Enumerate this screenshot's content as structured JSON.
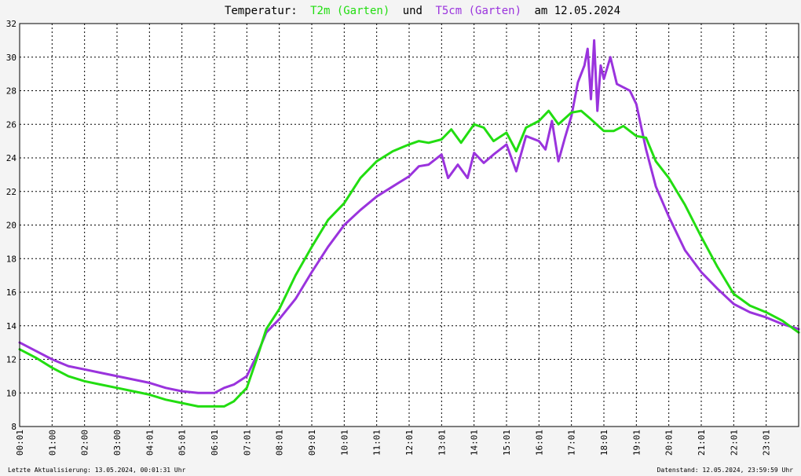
{
  "title": {
    "prefix": "Temperatur:",
    "series1": "T2m (Garten)",
    "joiner": "und",
    "series2": "T5cm (Garten)",
    "suffix": "am 12.05.2024"
  },
  "footer": {
    "left": "Letzte Aktualisierung: 13.05.2024, 00:01:31 Uhr",
    "right": "Datenstand: 12.05.2024, 23:59:59 Uhr"
  },
  "colors": {
    "T2m": "#22dd11",
    "T5cm": "#9a33dd",
    "background": "#ffffff",
    "page": "#f4f4f4",
    "grid": "#000000"
  },
  "chart_data": {
    "type": "line",
    "title": "Temperatur: T2m (Garten) und T5cm (Garten) am 12.05.2024",
    "xlabel": "",
    "ylabel": "",
    "ylim": [
      8,
      32
    ],
    "yticks": [
      8,
      10,
      12,
      14,
      16,
      18,
      20,
      22,
      24,
      26,
      28,
      30,
      32
    ],
    "xlim_hours": [
      0,
      24
    ],
    "xtick_labels": [
      "00:01",
      "01:00",
      "02:00",
      "03:00",
      "04:01",
      "05:01",
      "06:01",
      "07:01",
      "08:01",
      "09:01",
      "10:01",
      "11:01",
      "12:01",
      "13:01",
      "14:01",
      "15:01",
      "16:01",
      "17:01",
      "18:01",
      "19:01",
      "20:01",
      "21:01",
      "22:01",
      "23:01"
    ],
    "xtick_hours": [
      0,
      1,
      2,
      3,
      4,
      5,
      6,
      7,
      8,
      9,
      10,
      11,
      12,
      13,
      14,
      15,
      16,
      17,
      18,
      19,
      20,
      21,
      22,
      23
    ],
    "grid": true,
    "series": [
      {
        "name": "T2m (Garten)",
        "x_hours": [
          0,
          0.5,
          1,
          1.5,
          2,
          2.5,
          3,
          3.5,
          4,
          4.5,
          5,
          5.5,
          6,
          6.3,
          6.6,
          7,
          7.3,
          7.6,
          8,
          8.5,
          9,
          9.5,
          10,
          10.5,
          11,
          11.5,
          12,
          12.3,
          12.6,
          13,
          13.3,
          13.6,
          14,
          14.3,
          14.6,
          15,
          15.3,
          15.6,
          16,
          16.3,
          16.6,
          17,
          17.3,
          17.6,
          18,
          18.3,
          18.6,
          19,
          19.3,
          19.6,
          20,
          20.5,
          21,
          21.5,
          22,
          22.5,
          23,
          23.5,
          24
        ],
        "values": [
          12.6,
          12.1,
          11.5,
          11.0,
          10.7,
          10.5,
          10.3,
          10.1,
          9.9,
          9.6,
          9.4,
          9.2,
          9.2,
          9.2,
          9.5,
          10.3,
          12.0,
          13.8,
          15.0,
          17.0,
          18.7,
          20.3,
          21.3,
          22.8,
          23.8,
          24.4,
          24.8,
          25.0,
          24.9,
          25.1,
          25.7,
          24.9,
          26.0,
          25.8,
          25.0,
          25.5,
          24.4,
          25.8,
          26.2,
          26.8,
          26.0,
          26.7,
          26.8,
          26.3,
          25.6,
          25.6,
          25.9,
          25.3,
          25.2,
          23.8,
          22.8,
          21.2,
          19.3,
          17.5,
          15.9,
          15.2,
          14.8,
          14.3,
          13.6
        ]
      },
      {
        "name": "T5cm (Garten)",
        "x_hours": [
          0,
          0.5,
          1,
          1.5,
          2,
          2.5,
          3,
          3.5,
          4,
          4.5,
          5,
          5.5,
          6,
          6.3,
          6.6,
          7,
          7.3,
          7.6,
          8,
          8.5,
          9,
          9.5,
          10,
          10.5,
          11,
          11.5,
          12,
          12.3,
          12.6,
          13,
          13.2,
          13.5,
          13.8,
          14,
          14.3,
          14.6,
          15,
          15.3,
          15.6,
          16,
          16.2,
          16.4,
          16.6,
          16.8,
          17,
          17.2,
          17.4,
          17.5,
          17.6,
          17.7,
          17.8,
          17.9,
          18,
          18.2,
          18.4,
          18.6,
          18.8,
          19,
          19.3,
          19.6,
          20,
          20.5,
          21,
          21.5,
          22,
          22.5,
          23,
          23.5,
          24
        ],
        "values": [
          13.0,
          12.5,
          12.0,
          11.6,
          11.4,
          11.2,
          11.0,
          10.8,
          10.6,
          10.3,
          10.1,
          10.0,
          10.0,
          10.3,
          10.5,
          11.0,
          12.2,
          13.6,
          14.4,
          15.6,
          17.2,
          18.7,
          20.0,
          20.9,
          21.7,
          22.3,
          22.9,
          23.5,
          23.6,
          24.2,
          22.8,
          23.6,
          22.8,
          24.3,
          23.7,
          24.2,
          24.8,
          23.2,
          25.3,
          25.0,
          24.5,
          26.2,
          23.8,
          25.2,
          26.5,
          28.5,
          29.5,
          30.5,
          27.5,
          31.0,
          26.8,
          29.5,
          28.7,
          30.0,
          28.4,
          28.2,
          28.0,
          27.2,
          24.5,
          22.3,
          20.5,
          18.5,
          17.2,
          16.2,
          15.3,
          14.8,
          14.5,
          14.1,
          13.8
        ]
      }
    ],
    "footer_left": "Letzte Aktualisierung: 13.05.2024, 00:01:31 Uhr",
    "footer_right": "Datenstand: 12.05.2024, 23:59:59 Uhr"
  }
}
